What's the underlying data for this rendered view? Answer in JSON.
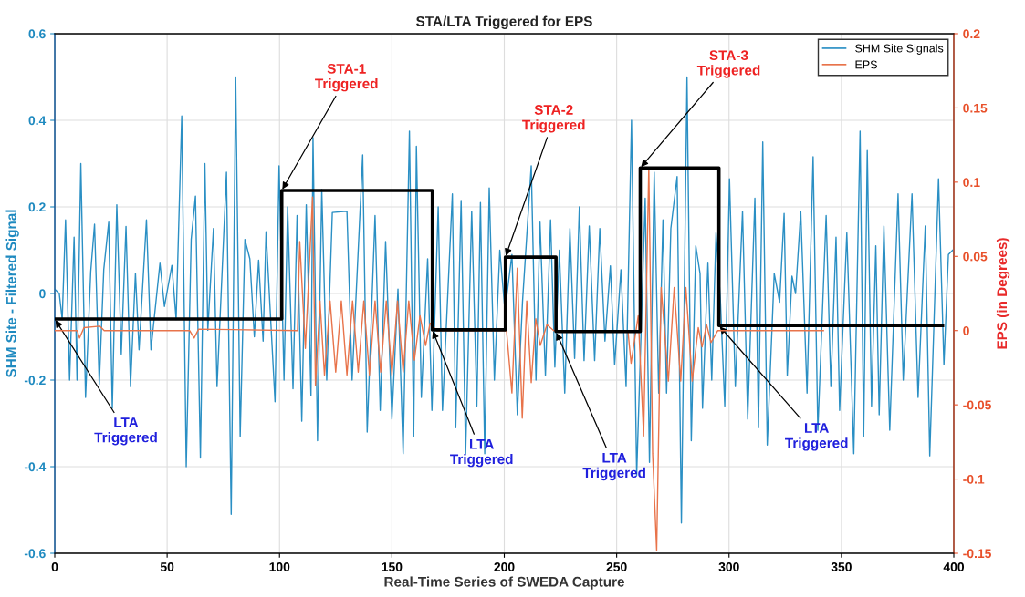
{
  "chart_data": {
    "type": "line",
    "title": "STA/LTA Triggered for EPS",
    "xlabel": "Real-Time Series of SWEDA Capture",
    "ylabel": "SHM Site - Filtered Signal",
    "y2label": "EPS (in Degrees)",
    "xlim": [
      0,
      400
    ],
    "xticks": [
      0,
      50,
      100,
      150,
      200,
      250,
      300,
      350,
      400
    ],
    "ylim": [
      -0.6,
      0.6
    ],
    "yticks": [
      -0.6,
      -0.4,
      -0.2,
      0,
      0.2,
      0.4,
      0.6
    ],
    "y2lim": [
      -0.15,
      0.2
    ],
    "y2ticks": [
      -0.15,
      -0.1,
      -0.05,
      0,
      0.05,
      0.1,
      0.15,
      0.2
    ],
    "grid": true,
    "legend": "top right",
    "series": [
      {
        "name": "SHM Site Signals",
        "color": "#2a8fc4",
        "x": [
          0,
          2.0,
          3.3,
          4.8,
          6.6,
          8.6,
          9.9,
          11.6,
          13.7,
          16.0,
          17.7,
          19.8,
          21.8,
          24.0,
          25.6,
          27.6,
          29.6,
          31.7,
          33.7,
          35.9,
          37.5,
          40.8,
          42.8,
          46.8,
          48.8,
          52.1,
          54.0,
          56.5,
          58.5,
          60.7,
          62.6,
          64.8,
          66.8,
          68.1,
          70.6,
          72.2,
          76.4,
          78.5,
          80.5,
          82.5,
          84.6,
          86.8,
          88.8,
          90.7,
          92.7,
          94.0,
          98.0,
          99.8,
          102.0,
          103.6,
          106.0,
          107.8,
          109.9,
          111.9,
          114.0,
          114.9,
          116.9,
          118.8,
          121.0,
          123.5,
          130,
          132.3,
          137,
          139,
          142.5,
          144.8,
          147.2,
          150,
          152.7,
          155,
          157.8,
          159.7,
          160.9,
          163.1,
          165.9,
          167.8,
          170.6,
          172.5,
          176.9,
          178.4,
          180.8,
          182.8,
          185.5,
          187.8,
          189.4,
          191.3,
          193.3,
          195.6,
          198,
          200.3,
          203.4,
          205.8,
          208.1,
          212,
          214.1,
          215.9,
          218.3,
          220.6,
          222.5,
          224.5,
          226.9,
          229.2,
          231.3,
          233.4,
          235.5,
          237.8,
          240.2,
          242.5,
          244.8,
          247.2,
          249.1,
          251.9,
          254.2,
          256.6,
          258.9,
          262.7,
          264.6,
          266.7,
          268.7,
          270.6,
          272.2,
          274.1,
          276.9,
          278.8,
          281.3,
          283.2,
          285.2,
          287.1,
          288.2,
          290.6,
          292.3,
          294.2,
          296.1,
          298.1,
          300.2,
          302.8,
          306,
          308.3,
          311.5,
          313.1,
          315,
          317,
          320.1,
          322.5,
          324.5,
          325.9,
          328,
          329.6,
          331.9,
          334.7,
          337.4,
          339.5,
          343.2,
          345.3,
          347.6,
          349.2,
          352.4,
          355.5,
          358.3,
          359.9,
          361.5,
          363.4,
          365.3,
          366.8,
          368.9,
          371.5,
          375.2,
          377.5,
          381.4,
          384.1,
          387.3,
          389.3,
          393.2,
          395.6,
          397.6,
          399.5
        ],
        "values": [
          0.01,
          0.0,
          -0.06,
          0.17,
          -0.2,
          0.13,
          -0.2,
          0.3,
          -0.24,
          0.05,
          0.16,
          -0.21,
          0.055,
          0.165,
          -0.265,
          0.205,
          -0.14,
          0.155,
          -0.215,
          0.046,
          -0.13,
          0.17,
          -0.13,
          0.07,
          -0.03,
          0.065,
          -0.06,
          0.41,
          -0.4,
          0.125,
          0.225,
          -0.38,
          0.3,
          -0.085,
          0.15,
          -0.215,
          0.28,
          -0.51,
          0.5,
          -0.33,
          0.125,
          0.08,
          -0.1,
          0.077,
          -0.11,
          0.143,
          -0.25,
          0.295,
          -0.2,
          0.2,
          -0.22,
          0.18,
          -0.295,
          0.205,
          -0.235,
          0.36,
          -0.34,
          0.24,
          -0.2,
          0.187,
          0.19,
          -0.2,
          0.32,
          -0.32,
          0.18,
          -0.27,
          0.12,
          -0.29,
          0.01,
          -0.37,
          0.375,
          -0.33,
          0.34,
          -0.24,
          0.08,
          -0.27,
          0.2,
          -0.27,
          0.23,
          -0.31,
          0.215,
          -0.37,
          0.19,
          -0.26,
          0.21,
          -0.37,
          0.244,
          -0.2,
          0.1,
          -0.04,
          0.09,
          -0.28,
          -0.02,
          0.295,
          -0.2,
          0.165,
          -0.19,
          0.17,
          -0.17,
          0.1,
          -0.23,
          0.15,
          -0.15,
          0.2,
          -0.155,
          0.156,
          -0.155,
          0.15,
          -0.11,
          0.064,
          -0.165,
          0.055,
          -0.215,
          0.4,
          -0.42,
          0.22,
          -0.39,
          0.28,
          -0.23,
          0.17,
          -0.23,
          0.15,
          0.27,
          -0.53,
          0.5,
          -0.34,
          0.11,
          0.046,
          -0.265,
          0.07,
          -0.2,
          0.14,
          -0.01,
          -0.26,
          0.265,
          -0.215,
          0.19,
          -0.29,
          0.22,
          -0.31,
          0.35,
          -0.35,
          0.046,
          -0.02,
          0.185,
          -0.19,
          0.04,
          0.0,
          0.19,
          -0.23,
          0.316,
          -0.316,
          0.18,
          -0.215,
          0.13,
          -0.27,
          0.14,
          -0.37,
          0.375,
          -0.33,
          0.33,
          -0.26,
          0.11,
          -0.28,
          0.156,
          -0.316,
          0.23,
          -0.2,
          0.23,
          -0.24,
          0.156,
          -0.375,
          0.265,
          -0.165,
          0.09,
          0.1
        ]
      },
      {
        "name": "EPS",
        "color": "#e8734a",
        "axis": "y2",
        "x": [
          0,
          10,
          11,
          13,
          20,
          22,
          60,
          62,
          64,
          108,
          109,
          111.5,
          114.7,
          116,
          118,
          120,
          122.5,
          125,
          127.5,
          130,
          132.5,
          135,
          137.5,
          140,
          142.5,
          145,
          147.5,
          150,
          152.5,
          155,
          157.5,
          160,
          162.5,
          165,
          167,
          170,
          201,
          203.4,
          205.8,
          208,
          210,
          212,
          214,
          216,
          219,
          222,
          255,
          256.4,
          259.6,
          262,
          264.3,
          266,
          267.8,
          269.8,
          273,
          275.6,
          278.5,
          280.8,
          283.6,
          286.3,
          288,
          290,
          292,
          295,
          342
        ],
        "values": [
          0,
          0,
          -0.005,
          0.002,
          0.003,
          0,
          0,
          -0.005,
          0.001,
          0,
          0.06,
          -0.012,
          0.09,
          -0.037,
          0.02,
          -0.03,
          0.02,
          -0.028,
          0.02,
          -0.03,
          0.02,
          -0.028,
          0.02,
          -0.03,
          0.02,
          -0.028,
          0.02,
          -0.03,
          0.02,
          -0.028,
          0.02,
          -0.02,
          0.01,
          -0.01,
          0.005,
          0,
          0,
          -0.042,
          0.042,
          -0.059,
          0.02,
          -0.035,
          0.008,
          -0.01,
          0.004,
          0,
          0,
          -0.022,
          0.01,
          -0.071,
          0.11,
          -0.083,
          -0.148,
          0.029,
          -0.034,
          0.029,
          -0.034,
          0.029,
          -0.034,
          0.002,
          -0.011,
          0.004,
          -0.008,
          0,
          0
        ]
      },
      {
        "color": "#000000",
        "x": [
          0,
          101,
          101,
          168,
          168,
          200.5,
          200.5,
          223,
          223,
          260.5,
          260.5,
          295.5,
          295.5,
          395
        ],
        "values": [
          -0.059,
          -0.059,
          0.238,
          0.238,
          -0.084,
          -0.084,
          0.084,
          0.084,
          -0.088,
          -0.088,
          0.29,
          0.29,
          -0.074,
          -0.074
        ]
      }
    ],
    "annotations": [
      {
        "text": "LTA\nTriggered",
        "x": 0,
        "y": -0.059
      },
      {
        "text": "STA-1\nTriggered",
        "x": 101,
        "y": 0.238
      },
      {
        "text": "LTA\nTriggered",
        "x": 168,
        "y": -0.084
      },
      {
        "text": "STA-2\nTriggered",
        "x": 200.5,
        "y": 0.084
      },
      {
        "text": "LTA\nTriggered",
        "x": 223,
        "y": -0.088
      },
      {
        "text": "STA-3\nTriggered",
        "x": 260.5,
        "y": 0.29
      },
      {
        "text": "LTA\nTriggered",
        "x": 295.5,
        "y": -0.074
      }
    ]
  }
}
